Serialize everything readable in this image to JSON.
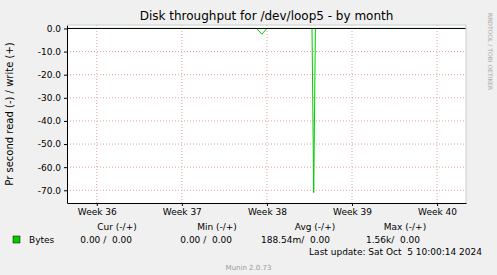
{
  "chart_data": {
    "type": "line",
    "title": "Disk throughput for /dev/loop5 - by month",
    "y_label": "Pr second read (-) / write (+)",
    "watermark": "RRDTOOL / TOBI OETIKER",
    "x": [
      35.65,
      37.88,
      37.94,
      38.0,
      38.53,
      38.55,
      38.57,
      40.34
    ],
    "series": [
      {
        "name": "Bytes",
        "color": "#00cc00",
        "values": [
          0,
          0,
          -2.5,
          0,
          0,
          -71,
          0,
          0
        ],
        "stats": [
          "0.00 /  0.00",
          "0.00 /  0.00",
          "188.54m/  0.00",
          "1.56k/  0.00"
        ]
      }
    ],
    "stats_headers": [
      "Cur (-/+)",
      "Min (-/+)",
      "Avg (-/+)",
      "Max (-/+)"
    ],
    "footer": "Last update: Sat Oct  5 10:00:14 2024",
    "credit": "Munin 2.0.73",
    "xlim": [
      35.65,
      40.34
    ],
    "xticks": [
      {
        "value": 36,
        "label": "Week 36"
      },
      {
        "value": 37,
        "label": "Week 37"
      },
      {
        "value": 38,
        "label": "Week 38"
      },
      {
        "value": 39,
        "label": "Week 39"
      },
      {
        "value": 40,
        "label": "Week 40"
      }
    ],
    "ylim": [
      -75.5,
      1.5
    ],
    "yticks": [
      {
        "value": 0,
        "label": "0.0"
      },
      {
        "value": -10,
        "label": "-10.0"
      },
      {
        "value": -20,
        "label": "-20.0"
      },
      {
        "value": -30,
        "label": "-30.0"
      },
      {
        "value": -40,
        "label": "-40.0"
      },
      {
        "value": -50,
        "label": "-50.0"
      },
      {
        "value": -60,
        "label": "-60.0"
      },
      {
        "value": -70,
        "label": "-70.0"
      }
    ],
    "grid": true,
    "legend": "bottom"
  }
}
